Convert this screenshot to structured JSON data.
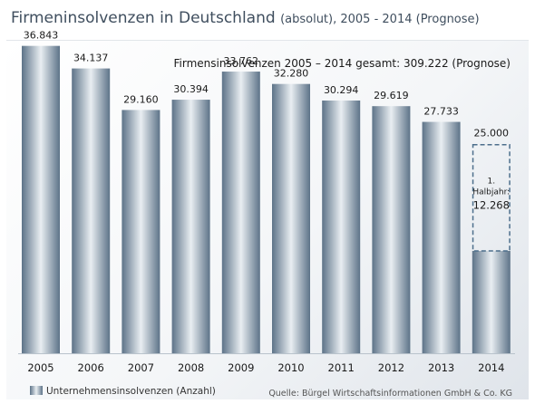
{
  "title": {
    "main": "Firmeninsolvenzen in Deutschland",
    "suffix": "(absolut), 2005 - 2014 (Prognose)"
  },
  "subtitle": "Firmensinsolvenzen 2005 – 2014 gesamt: 309.222 (Prognose)",
  "legend_label": "Unternehmensinsolvenzen (Anzahl)",
  "source": "Quelle: Bürgel Wirtschaftsinformationen GmbH & Co. KG",
  "colors": {
    "bar_edge": "#5d7388",
    "bar_mid": "#e9eef2",
    "dashed_box": "#4d6f8c"
  },
  "chart_data": {
    "type": "bar",
    "categories": [
      "2005",
      "2006",
      "2007",
      "2008",
      "2009",
      "2010",
      "2011",
      "2012",
      "2013",
      "2014"
    ],
    "values": [
      36843,
      34137,
      29160,
      30394,
      33762,
      32280,
      30294,
      29619,
      27733,
      25000
    ],
    "value_labels": [
      "36.843",
      "34.137",
      "29.160",
      "30.394",
      "33.762",
      "32.280",
      "30.294",
      "29.619",
      "27.733",
      "25.000"
    ],
    "forecast": {
      "category": "2014",
      "actual_value": 12268,
      "actual_label_line1": "1.",
      "actual_label_line2": "Halbjahr:",
      "actual_value_label": "12.268"
    },
    "ylim": [
      0,
      38000
    ],
    "grid": false,
    "legend_position": "bottom-left"
  }
}
